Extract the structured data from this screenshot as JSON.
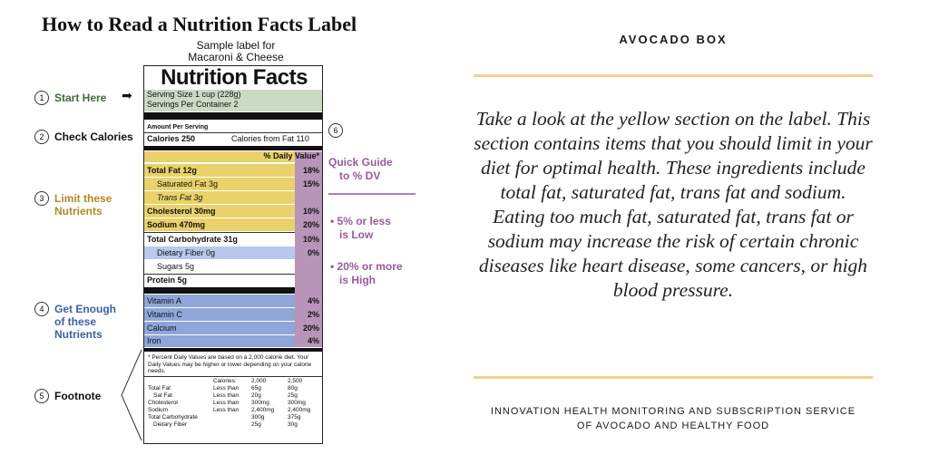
{
  "graphic": {
    "title": "How to Read a Nutrition Facts Label",
    "sample_line1": "Sample label for",
    "sample_line2": "Macaroni & Cheese",
    "label": {
      "heading": "Nutrition Facts",
      "serving_size": "Serving Size 1 cup (228g)",
      "servings_per_container": "Servings Per Container  2",
      "amount_per_serving": "Amount Per Serving",
      "calories": "Calories 250",
      "calories_from_fat": "Calories from Fat 110",
      "daily_value_header": "% Daily Value*",
      "nutrients": [
        {
          "name": "Total Fat 12g",
          "dv": "18%"
        },
        {
          "name": "Saturated Fat 3g",
          "dv": "15%"
        },
        {
          "name": "Trans Fat 3g",
          "dv": ""
        },
        {
          "name": "Cholesterol 30mg",
          "dv": "10%"
        },
        {
          "name": "Sodium 470mg",
          "dv": "20%"
        },
        {
          "name": "Total Carbohydrate 31g",
          "dv": "10%"
        },
        {
          "name": "Dietary Fiber 0g",
          "dv": "0%"
        },
        {
          "name": "Sugars 5g",
          "dv": ""
        },
        {
          "name": "Protein 5g",
          "dv": ""
        },
        {
          "name": "Vitamin A",
          "dv": "4%"
        },
        {
          "name": "Vitamin C",
          "dv": "2%"
        },
        {
          "name": "Calcium",
          "dv": "20%"
        },
        {
          "name": "Iron",
          "dv": "4%"
        }
      ],
      "footnote": "* Percent Daily Values are based on a 2,000 calorie diet. Your Daily Values may be higher or lower depending on your calorie needs.",
      "footnote_table": [
        [
          "",
          "Calories:",
          "2,000",
          "2,500"
        ],
        [
          "Total Fat",
          "Less than",
          "65g",
          "80g"
        ],
        [
          "Sat Fat",
          "Less than",
          "20g",
          "25g"
        ],
        [
          "Cholesterol",
          "Less than",
          "300mg",
          "300mg"
        ],
        [
          "Sodium",
          "Less than",
          "2,400mg",
          "2,400mg"
        ],
        [
          "Total Carbohydrate",
          "",
          "300g",
          "375g"
        ],
        [
          "Dietary Fiber",
          "",
          "25g",
          "30g"
        ]
      ]
    },
    "callouts": {
      "c1_num": "1",
      "c1": "Start Here",
      "c2_num": "2",
      "c2": "Check Calories",
      "c3_num": "3",
      "c3_l1": "Limit these",
      "c3_l2": "Nutrients",
      "c4_num": "4",
      "c4_l1": "Get Enough",
      "c4_l2": "of these",
      "c4_l3": "Nutrients",
      "c5_num": "5",
      "c5": "Footnote",
      "c6_num": "6",
      "c6_l1": "Quick Guide",
      "c6_l2": "to % DV",
      "low_l1": "• 5% or less",
      "low_l2": "is Low",
      "high_l1": "• 20% or more",
      "high_l2": "is High"
    },
    "colors": {
      "yellow": "#e9d26a",
      "blue": "#8ea6d8",
      "purple": "#b895b8",
      "green": "#c9dbc3"
    }
  },
  "panel": {
    "brand": "AVOCADO BOX",
    "body": "Take a look at the yellow section on the label. This section contains items that you should limit in your diet for optimal health. These ingredients include total fat, saturated fat, trans fat and sodium. Eating too much fat, saturated fat, trans fat or sodium may increase the risk of certain chronic diseases like heart disease, some cancers, or high blood pressure.",
    "tagline_l1": "INNOVATION HEALTH MONITORING AND SUBSCRIPTION SERVICE",
    "tagline_l2": "OF AVOCADO AND HEALTHY FOOD",
    "accent_color": "#f2cf8c"
  }
}
